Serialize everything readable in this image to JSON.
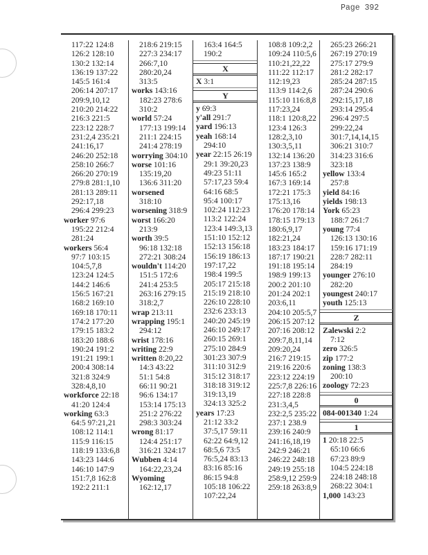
{
  "page_label": "Page 392",
  "columns": [
    [
      {
        "term": "",
        "lines": [
          "117:22 124:8",
          "126:2 128:10",
          "130:2 132:14",
          "136:19 137:22",
          "145:5 161:4",
          "206:14 207:17",
          "209:9,10,12",
          "210:20 214:22",
          "216:3 221:5",
          "223:12 228:7",
          "231:2,4 235:21",
          "241:16,17",
          "246:20 252:18",
          "258:10 266:7",
          "266:20 270:19",
          "279:8 281:1,10",
          "281:13 289:11",
          "292:17,18",
          "296:4 299:23"
        ]
      },
      {
        "term": "worker",
        "lines": [
          "97:6",
          "195:22 212:4",
          "281:24"
        ]
      },
      {
        "term": "workers",
        "lines": [
          "56:4",
          "97:7 103:15",
          "104:5,7,8",
          "123:24 124:5",
          "144:2 146:6",
          "156:5 167:21",
          "168:2 169:10",
          "169:18 170:11",
          "174:2 177:20",
          "179:15 183:2",
          "183:20 188:6",
          "190:24 191:2",
          "191:21 199:1",
          "200:4 308:14",
          "321:8 324:9",
          "328:4,8,10"
        ]
      },
      {
        "term": "workforce",
        "lines": [
          "22:18",
          "41:20 124:4"
        ]
      },
      {
        "term": "working",
        "lines": [
          "63:3",
          "64:5 97:21,21",
          "108:12 114:1",
          "115:9 116:15",
          "118:19 133:6,8",
          "143:23 144:6",
          "146:10 147:9",
          "151:7,8 162:8",
          "192:2 211:1"
        ]
      }
    ],
    [
      {
        "term": "",
        "lines": [
          "218:6 219:15",
          "227:3 234:17",
          "266:7,10",
          "280:20,24",
          "313:5"
        ]
      },
      {
        "term": "works",
        "lines": [
          "143:16",
          "182:23 278:6",
          "310:2"
        ]
      },
      {
        "term": "world",
        "lines": [
          "57:24",
          "177:13 199:14",
          "211:1 224:15",
          "241:4 278:19"
        ]
      },
      {
        "term": "worrying",
        "lines": [
          "304:10"
        ]
      },
      {
        "term": "worse",
        "lines": [
          "101:16",
          "135:19,20",
          "136:6 311:20"
        ]
      },
      {
        "term": "worsened",
        "lines": [
          "",
          "318:10"
        ]
      },
      {
        "term": "worsening",
        "lines": [
          "318:9"
        ]
      },
      {
        "term": "worst",
        "lines": [
          "166:20",
          "213:9"
        ]
      },
      {
        "term": "worth",
        "lines": [
          "39:5",
          "96:18 132:18",
          "272:21 308:24"
        ]
      },
      {
        "term": "wouldn't",
        "lines": [
          "114:20",
          "151:5 172:6",
          "241:4 253:5",
          "263:16 279:15",
          "318:2,7"
        ]
      },
      {
        "term": "wrap",
        "lines": [
          "213:11"
        ]
      },
      {
        "term": "wrapping",
        "lines": [
          "195:1",
          "294:12"
        ]
      },
      {
        "term": "wrist",
        "lines": [
          "178:16"
        ]
      },
      {
        "term": "writing",
        "lines": [
          "22:9"
        ]
      },
      {
        "term": "written",
        "lines": [
          "8:20,22",
          "14:3 43:22",
          "51:1 54:8",
          "66:11 90:21",
          "96:6 134:17",
          "153:14 175:13",
          "251:2 276:22",
          "298:3 303:24"
        ]
      },
      {
        "term": "wrong",
        "lines": [
          "81:17",
          "124:4 251:17",
          "316:21 324:17"
        ]
      },
      {
        "term": "Wubben",
        "lines": [
          "4:14",
          "164:22,23,24"
        ]
      },
      {
        "term": "Wyoming",
        "lines": [
          "",
          "162:12,17"
        ]
      }
    ],
    [
      {
        "term": "",
        "lines": [
          "163:4 164:5",
          "190:2"
        ]
      },
      {
        "header": "X"
      },
      {
        "term": "X",
        "lines": [
          "3:1"
        ]
      },
      {
        "header": "Y"
      },
      {
        "term": "y",
        "lines": [
          "69:3"
        ]
      },
      {
        "term": "y'all",
        "lines": [
          "291:7"
        ]
      },
      {
        "term": "yard",
        "lines": [
          "196:13"
        ]
      },
      {
        "term": "yeah",
        "lines": [
          "168:14",
          "294:10"
        ]
      },
      {
        "term": "year",
        "lines": [
          "22:15 26:19",
          "29:1 39:20,23",
          "49:23 51:11",
          "57:17,23 59:4",
          "64:16 68:5",
          "95:4 100:17",
          "102:24 112:23",
          "113:2 122:24",
          "123:4 149:3,13",
          "151:10 152:12",
          "152:13 156:18",
          "156:19 186:13",
          "197:17,22",
          "198:4 199:5",
          "205:17 215:18",
          "215:19 218:10",
          "226:10 228:10",
          "232:6 233:13",
          "240:20 245:19",
          "246:10 249:17",
          "260:15 269:1",
          "275:10 284:9",
          "301:23 307:9",
          "311:10 312:9",
          "315:12 318:17",
          "318:18 319:12",
          "319:13,19",
          "324:13 325:2"
        ]
      },
      {
        "term": "years",
        "lines": [
          "17:23",
          "21:12 33:2",
          "37:5,17 59:11",
          "62:22 64:9,12",
          "68:5,6 73:5",
          "76:5,24 83:13",
          "83:16 85:16",
          "86:15 94:8",
          "105:18 106:22",
          "107:22,24"
        ]
      }
    ],
    [
      {
        "term": "",
        "lines": [
          "108:8 109:2,2",
          "109:24 110:5,6",
          "110:21,22,22",
          "111:22 112:17",
          "112:19,23",
          "113:9 114:2,6",
          "115:10 116:8,8",
          "117:23,24",
          "118:1 120:8,22",
          "123:4 126:3",
          "128:2,3,10",
          "130:3,5,11",
          "132:14 136:20",
          "137:23 138:9",
          "145:6 165:2",
          "167:3 169:14",
          "172:21 175:3",
          "175:13,16",
          "176:20 178:14",
          "178:15 179:13",
          "180:6,9,17",
          "182:21,24",
          "183:23 184:17",
          "187:17 190:21",
          "191:18 195:14",
          "198:9 199:13",
          "200:2 201:10",
          "201:24 202:1",
          "203:6,11",
          "204:10 205:5,7",
          "206:15 207:12",
          "207:16 208:12",
          "209:7,8,11,14",
          "209:20,24",
          "216:7 219:15",
          "219:16 220:6",
          "223:12 224:19",
          "225:7,8 226:16",
          "227:18 228:8",
          "231:3,4,5",
          "232:2,5 235:22",
          "237:1 238.9",
          "239:16 240:9",
          "241:16,18,19",
          "242:9 246:21",
          "246:22 248:18",
          "249:19 255:18",
          "258:9,12 259:9",
          "259:18 263:8,9"
        ]
      }
    ],
    [
      {
        "term": "",
        "lines": [
          "265:23 266:21",
          "267:19 270:19",
          "275:17 279:9",
          "281:2 282:17",
          "285:24 287:15",
          "287:24 290:6",
          "292:15,17,18",
          "293:14 295:4",
          "296:4 297:5",
          "299:22,24",
          "301:7,14,14,15",
          "306:21 310:7",
          "314:23 316:6",
          "323:18"
        ]
      },
      {
        "term": "yellow",
        "lines": [
          "133:4",
          "257:8"
        ]
      },
      {
        "term": "yield",
        "lines": [
          "84:16"
        ]
      },
      {
        "term": "yields",
        "lines": [
          "198:13"
        ]
      },
      {
        "term": "York",
        "lines": [
          "65:23",
          "188:7 261:7"
        ]
      },
      {
        "term": "young",
        "lines": [
          "77:4",
          "126:13 130:16",
          "159:16 171:19",
          "228:7 282:11",
          "284:19"
        ]
      },
      {
        "term": "younger",
        "lines": [
          "276:10",
          "282:20"
        ]
      },
      {
        "term": "youngest",
        "lines": [
          "240:17"
        ]
      },
      {
        "term": "youth",
        "lines": [
          "125:13"
        ]
      },
      {
        "header": "Z"
      },
      {
        "term": "Zalewski",
        "lines": [
          "2:2",
          "7:12"
        ]
      },
      {
        "term": "zero",
        "lines": [
          "326:5"
        ]
      },
      {
        "term": "zip",
        "lines": [
          "177:2"
        ]
      },
      {
        "term": "zoning",
        "lines": [
          "138:3",
          "200:10"
        ]
      },
      {
        "term": "zoology",
        "lines": [
          "72:23"
        ]
      },
      {
        "header": "0"
      },
      {
        "term": "084-001340",
        "lines": [
          "1:24"
        ]
      },
      {
        "header": "1"
      },
      {
        "term": "1",
        "lines": [
          "20:18 22:5",
          "65:10 66:6",
          "67:23 89:9",
          "104:5 224:18",
          "224:18 248:18",
          "268:22 304:1"
        ]
      },
      {
        "term": "1,000",
        "lines": [
          "143:23"
        ]
      }
    ]
  ]
}
